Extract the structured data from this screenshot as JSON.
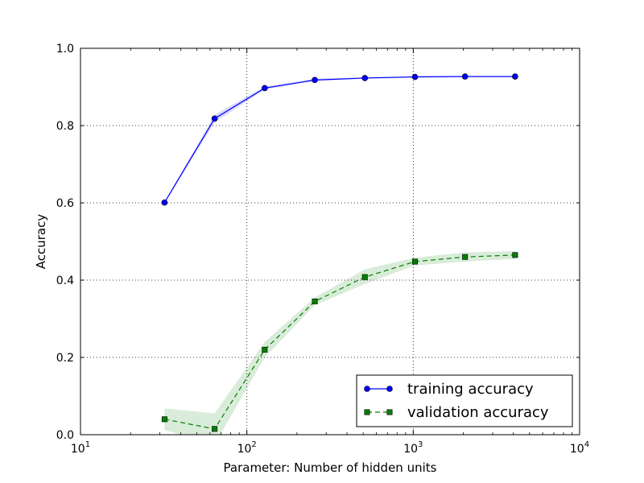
{
  "chart_data": {
    "type": "line",
    "title": "",
    "xlabel": "Parameter: Number of hidden units",
    "ylabel": "Accuracy",
    "x_scale": "log",
    "xlim": [
      10,
      10000
    ],
    "ylim": [
      0.0,
      1.0
    ],
    "x_ticks": [
      {
        "value": 10,
        "base": "10",
        "exp": "1"
      },
      {
        "value": 100,
        "base": "10",
        "exp": "2"
      },
      {
        "value": 1000,
        "base": "10",
        "exp": "3"
      },
      {
        "value": 10000,
        "base": "10",
        "exp": "4"
      }
    ],
    "y_ticks": [
      {
        "value": 0.0,
        "label": "0.0"
      },
      {
        "value": 0.2,
        "label": "0.2"
      },
      {
        "value": 0.4,
        "label": "0.4"
      },
      {
        "value": 0.6,
        "label": "0.6"
      },
      {
        "value": 0.8,
        "label": "0.8"
      },
      {
        "value": 1.0,
        "label": "1.0"
      }
    ],
    "grid": true,
    "legend_position": "lower-right",
    "x": [
      32,
      64,
      128,
      256,
      512,
      1024,
      2048,
      4096
    ],
    "series": [
      {
        "name": "training accuracy",
        "color": "#0000ff",
        "linestyle": "solid",
        "marker": "circle",
        "values": [
          0.601,
          0.818,
          0.897,
          0.918,
          0.923,
          0.926,
          0.927,
          0.927
        ],
        "band_lower": [
          0.599,
          0.808,
          0.893,
          0.915,
          0.921,
          0.924,
          0.925,
          0.925
        ],
        "band_upper": [
          0.603,
          0.828,
          0.901,
          0.921,
          0.925,
          0.928,
          0.929,
          0.929
        ],
        "band_color": "#0000ff"
      },
      {
        "name": "validation accuracy",
        "color": "#008000",
        "linestyle": "dashed",
        "marker": "square",
        "values": [
          0.04,
          0.015,
          0.22,
          0.345,
          0.408,
          0.448,
          0.46,
          0.465
        ],
        "band_lower": [
          0.012,
          -0.025,
          0.2,
          0.335,
          0.39,
          0.438,
          0.448,
          0.455
        ],
        "band_upper": [
          0.068,
          0.055,
          0.24,
          0.355,
          0.428,
          0.458,
          0.472,
          0.475
        ],
        "band_color": "#008000"
      }
    ]
  }
}
